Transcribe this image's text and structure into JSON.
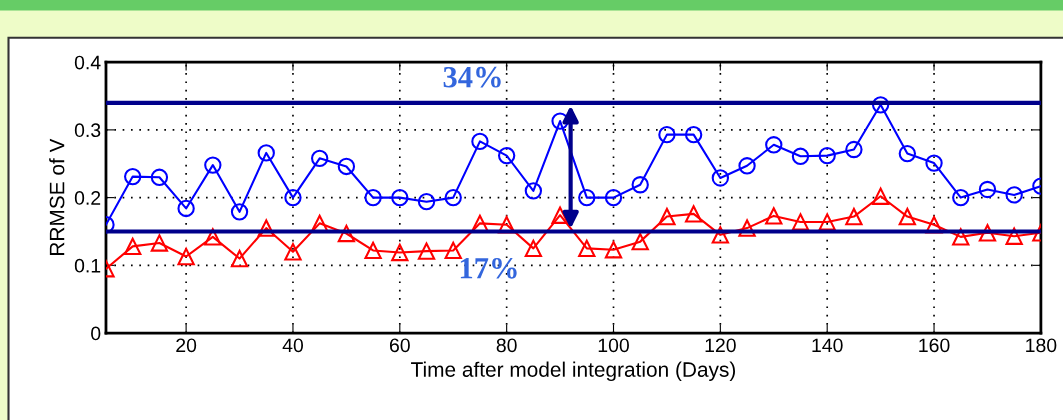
{
  "chart_data": {
    "type": "line",
    "xlabel": "Time after model integration (Days)",
    "ylabel": "RRMSE of V",
    "x": [
      5,
      10,
      15,
      20,
      25,
      30,
      35,
      40,
      45,
      50,
      55,
      60,
      65,
      70,
      75,
      80,
      85,
      90,
      95,
      100,
      105,
      110,
      115,
      120,
      125,
      130,
      135,
      140,
      145,
      150,
      155,
      160,
      165,
      170,
      175,
      180
    ],
    "series": [
      {
        "color": "#0000ff",
        "marker": "circle",
        "values": [
          0.16,
          0.231,
          0.23,
          0.184,
          0.248,
          0.179,
          0.266,
          0.2,
          0.258,
          0.246,
          0.2,
          0.2,
          0.194,
          0.2,
          0.283,
          0.262,
          0.21,
          0.313,
          0.2,
          0.2,
          0.219,
          0.293,
          0.293,
          0.229,
          0.247,
          0.278,
          0.261,
          0.262,
          0.271,
          0.337,
          0.265,
          0.251,
          0.2,
          0.212,
          0.204,
          0.217
        ]
      },
      {
        "color": "#ff0000",
        "marker": "triangle",
        "values": [
          0.095,
          0.128,
          0.133,
          0.113,
          0.142,
          0.11,
          0.155,
          0.12,
          0.162,
          0.147,
          0.122,
          0.119,
          0.121,
          0.122,
          0.162,
          0.16,
          0.125,
          0.174,
          0.125,
          0.123,
          0.135,
          0.172,
          0.176,
          0.145,
          0.155,
          0.173,
          0.164,
          0.164,
          0.172,
          0.202,
          0.172,
          0.16,
          0.142,
          0.148,
          0.143,
          0.148
        ]
      }
    ],
    "xlim": [
      5,
      180
    ],
    "xticks": [
      20,
      40,
      60,
      80,
      100,
      120,
      140,
      160,
      180
    ],
    "ylim": [
      0,
      0.4
    ],
    "yticks": [
      0,
      0.1,
      0.2,
      0.3,
      0.4
    ],
    "grid": true,
    "ref_lines": [
      {
        "axis": "y",
        "value": 0.15,
        "color": "#00008b"
      },
      {
        "axis": "y",
        "value": 0.34,
        "color": "#00008b"
      }
    ],
    "annotations": [
      "17%",
      "34%"
    ]
  }
}
